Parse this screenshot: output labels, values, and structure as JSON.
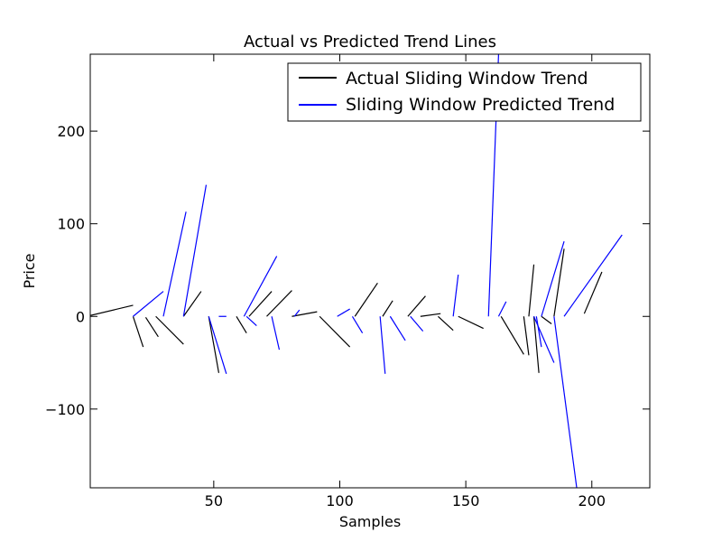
{
  "chart_data": {
    "type": "line",
    "title": "Actual vs Predicted Trend Lines",
    "xlabel": "Samples",
    "ylabel": "Price",
    "xlim": [
      1,
      223
    ],
    "ylim": [
      -185,
      283
    ],
    "xticks": [
      50,
      100,
      150,
      200
    ],
    "yticks": [
      -100,
      0,
      100,
      200
    ],
    "xtick_labels": [
      "50",
      "100",
      "150",
      "200"
    ],
    "ytick_labels": [
      "−100",
      "0",
      "100",
      "200"
    ],
    "grid": false,
    "legend_position": "top-right",
    "series": [
      {
        "name": "Actual Sliding Window Trend",
        "color": "#000000",
        "segments": [
          [
            [
              1,
              1
            ],
            [
              18,
              12
            ]
          ],
          [
            [
              18,
              0
            ],
            [
              22,
              -33
            ]
          ],
          [
            [
              23,
              -1
            ],
            [
              28,
              -22
            ]
          ],
          [
            [
              27,
              0
            ],
            [
              38,
              -30
            ]
          ],
          [
            [
              38,
              0
            ],
            [
              45,
              27
            ]
          ],
          [
            [
              48,
              0
            ],
            [
              52,
              -61
            ]
          ],
          [
            [
              59,
              0
            ],
            [
              63,
              -18
            ]
          ],
          [
            [
              64,
              0
            ],
            [
              73,
              27
            ]
          ],
          [
            [
              71,
              0
            ],
            [
              81,
              28
            ]
          ],
          [
            [
              81,
              0
            ],
            [
              91,
              5
            ]
          ],
          [
            [
              92,
              0
            ],
            [
              104,
              -33
            ]
          ],
          [
            [
              106,
              0
            ],
            [
              115,
              36
            ]
          ],
          [
            [
              117,
              0
            ],
            [
              121,
              17
            ]
          ],
          [
            [
              127,
              0
            ],
            [
              134,
              22
            ]
          ],
          [
            [
              132,
              0
            ],
            [
              140,
              3
            ]
          ],
          [
            [
              139,
              0
            ],
            [
              145,
              -15
            ]
          ],
          [
            [
              147,
              0
            ],
            [
              157,
              -13
            ]
          ],
          [
            [
              164,
              0
            ],
            [
              173,
              -41
            ]
          ],
          [
            [
              173,
              0
            ],
            [
              175,
              -42
            ]
          ],
          [
            [
              175,
              0
            ],
            [
              177,
              56
            ]
          ],
          [
            [
              177,
              0
            ],
            [
              179,
              -61
            ]
          ],
          [
            [
              180,
              0
            ],
            [
              184,
              -8
            ]
          ],
          [
            [
              185,
              0
            ],
            [
              189,
              73
            ]
          ],
          [
            [
              197,
              3
            ],
            [
              204,
              48
            ]
          ]
        ]
      },
      {
        "name": "Sliding Window Predicted Trend",
        "color": "#0000ff",
        "segments": [
          [
            [
              18,
              0
            ],
            [
              30,
              27
            ]
          ],
          [
            [
              30,
              0
            ],
            [
              39,
              113
            ]
          ],
          [
            [
              38,
              0
            ],
            [
              47,
              142
            ]
          ],
          [
            [
              48,
              0
            ],
            [
              55,
              -62
            ]
          ],
          [
            [
              52,
              0
            ],
            [
              55,
              0
            ]
          ],
          [
            [
              62,
              0
            ],
            [
              75,
              65
            ]
          ],
          [
            [
              63,
              0
            ],
            [
              67,
              -10
            ]
          ],
          [
            [
              73,
              0
            ],
            [
              76,
              -36
            ]
          ],
          [
            [
              82,
              0
            ],
            [
              84,
              7
            ]
          ],
          [
            [
              99,
              0
            ],
            [
              104,
              8
            ]
          ],
          [
            [
              105,
              0
            ],
            [
              109,
              -18
            ]
          ],
          [
            [
              116,
              0
            ],
            [
              118,
              -62
            ]
          ],
          [
            [
              120,
              0
            ],
            [
              126,
              -26
            ]
          ],
          [
            [
              128,
              0
            ],
            [
              133,
              -16
            ]
          ],
          [
            [
              145,
              0
            ],
            [
              147,
              45
            ]
          ],
          [
            [
              159,
              0
            ],
            [
              163,
              283
            ]
          ],
          [
            [
              163,
              0
            ],
            [
              166,
              16
            ]
          ],
          [
            [
              177,
              0
            ],
            [
              185,
              -50
            ]
          ],
          [
            [
              178,
              0
            ],
            [
              180,
              -33
            ]
          ],
          [
            [
              180,
              0
            ],
            [
              189,
              81
            ]
          ],
          [
            [
              185,
              0
            ],
            [
              194,
              -185
            ]
          ],
          [
            [
              189,
              0
            ],
            [
              212,
              88
            ]
          ]
        ]
      }
    ]
  }
}
